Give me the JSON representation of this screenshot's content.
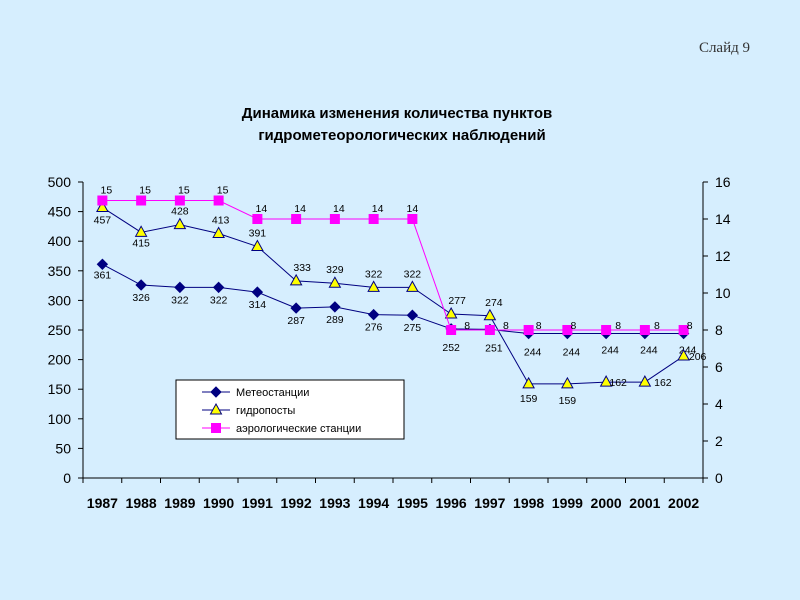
{
  "slide": {
    "label": "Слайд 9"
  },
  "chart_data": {
    "type": "line",
    "title": [
      "Динамика изменения количества пунктов",
      "гидрометеорологических наблюдений"
    ],
    "categories": [
      "1987",
      "1988",
      "1989",
      "1990",
      "1991",
      "1992",
      "1993",
      "1994",
      "1995",
      "1996",
      "1997",
      "1998",
      "1999",
      "2000",
      "2001",
      "2002"
    ],
    "y_left": {
      "min": 0,
      "max": 500,
      "step": 50
    },
    "y_right": {
      "min": 0,
      "max": 16,
      "step": 2
    },
    "legend_position": "bottom-left inside plot",
    "series": [
      {
        "name": "Метеостанции",
        "axis": "left",
        "marker": "diamond",
        "color": "#000080",
        "marker_fill": "#000080",
        "values": [
          361,
          326,
          322,
          322,
          314,
          287,
          289,
          276,
          275,
          252,
          251,
          244,
          244,
          244,
          244,
          244
        ]
      },
      {
        "name": "гидропосты",
        "axis": "left",
        "marker": "triangle",
        "color": "#000080",
        "marker_fill": "#ffff00",
        "values": [
          457,
          415,
          428,
          413,
          391,
          333,
          329,
          322,
          322,
          277,
          274,
          159,
          159,
          162,
          162,
          206
        ]
      },
      {
        "name": "аэрологические станции",
        "axis": "right",
        "marker": "square",
        "color": "#ff00ff",
        "marker_fill": "#ff00ff",
        "values": [
          15,
          15,
          15,
          15,
          14,
          14,
          14,
          14,
          14,
          8,
          8,
          8,
          8,
          8,
          8,
          8
        ]
      }
    ],
    "data_labels": {
      "Метеостанции": [
        "361",
        "326",
        "322",
        "322",
        "314",
        "287",
        "289",
        "276",
        "275",
        "252",
        "251",
        "244",
        "244",
        "244",
        "244",
        "244"
      ],
      "гидропосты": [
        "457",
        "415",
        "428",
        "413",
        "391",
        "333",
        "329",
        "322",
        "322",
        "277",
        "274",
        "159",
        "159",
        "162",
        "162",
        "206"
      ],
      "аэрологические станции": [
        "15",
        "15",
        "15",
        "15",
        "14",
        "14",
        "14",
        "14",
        "14",
        "8",
        "8",
        "8",
        "8",
        "8",
        "8",
        "8"
      ]
    }
  }
}
